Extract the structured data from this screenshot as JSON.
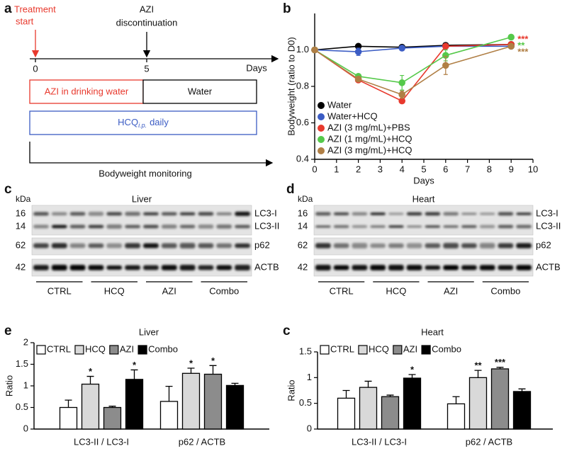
{
  "timeline": {
    "panel": "a",
    "start_label": [
      "Treatment",
      "start"
    ],
    "stop_label": [
      "AZI",
      "discontinuation"
    ],
    "ticks": [
      0,
      5
    ],
    "axis_label": "Days",
    "phase1": "AZI in drinking water",
    "phase2": "Water",
    "hcq": {
      "drug": "HCQ",
      "subscript": "i.p.",
      "suffix": "daily"
    },
    "monitoring": "Bodyweight monitoring"
  },
  "chart_data": [
    {
      "type": "line",
      "panel": "b",
      "x": [
        0,
        2,
        4,
        6,
        9
      ],
      "xlim": [
        0,
        10
      ],
      "xticks": [
        0,
        1,
        2,
        3,
        4,
        5,
        6,
        7,
        8,
        9,
        10
      ],
      "ylim": [
        0.4,
        1.2
      ],
      "yticks": [
        0.4,
        0.6,
        0.8,
        {
          "value": 1,
          "label": "1.0"
        }
      ],
      "xlabel": "Days",
      "ylabel": "Bodyweight (ratio to D0)",
      "legend": "lower left",
      "series": [
        {
          "name": "Water",
          "color": "#000000",
          "values": [
            1,
            1.02,
            1.015,
            1.025,
            1.03
          ],
          "errors": [
            0,
            0.01,
            0.01,
            0.01,
            0.01
          ]
        },
        {
          "name": "Water+HCQ",
          "color": "#3b5cc4",
          "values": [
            1,
            0.99,
            1.01,
            1.02,
            1.02
          ],
          "errors": [
            0,
            0.02,
            0.01,
            0.01,
            0.01
          ]
        },
        {
          "name": "AZI (3 mg/mL)+PBS",
          "color": "#e8392d",
          "values": [
            1,
            0.835,
            0.72,
            1.02,
            1.03
          ],
          "errors": [
            0,
            0.01,
            0.01,
            0.01,
            0.01
          ],
          "label": "***"
        },
        {
          "name": "AZI (1 mg/mL)+HCQ",
          "color": "#55c94a",
          "values": [
            1,
            0.855,
            0.82,
            0.97,
            1.07
          ],
          "errors": [
            0,
            0.01,
            0.04,
            0.03,
            0.01
          ],
          "label": "**"
        },
        {
          "name": "AZI (3 mg/mL)+HCQ",
          "color": "#b07f45",
          "values": [
            1,
            0.84,
            0.755,
            0.915,
            1.02
          ],
          "errors": [
            0,
            0.01,
            0.02,
            0.05,
            0.01
          ],
          "label": "***"
        }
      ]
    },
    {
      "type": "bar",
      "panel": "e",
      "title": "Liver",
      "categories": [
        "LC3-II / LC3-I",
        "p62 / ACTB"
      ],
      "ylabel": "Ratio",
      "ylim": [
        0,
        2
      ],
      "yticks": [
        0,
        0.5,
        1,
        1.5,
        2
      ],
      "legend": "top left",
      "series": [
        {
          "name": "CTRL",
          "color": "#ffffff",
          "values": [
            0.5,
            0.64
          ],
          "errors": [
            0.17,
            0.35
          ]
        },
        {
          "name": "HCQ",
          "color": "#d9d9d9",
          "values": [
            1.04,
            1.29
          ],
          "errors": [
            0.18,
            0.12
          ],
          "stars": [
            "*",
            "*"
          ]
        },
        {
          "name": "AZI",
          "color": "#8c8c8c",
          "values": [
            0.5,
            1.27
          ],
          "errors": [
            0.03,
            0.2
          ],
          "stars": [
            null,
            "*"
          ]
        },
        {
          "name": "Combo",
          "color": "#000000",
          "values": [
            1.15,
            1.01
          ],
          "errors": [
            0.22,
            0.05
          ],
          "stars": [
            "*",
            null
          ]
        }
      ]
    },
    {
      "type": "bar",
      "panel": "c",
      "title": "Heart",
      "categories": [
        "LC3-II / LC3-I",
        "p62 / ACTB"
      ],
      "ylabel": "Ratio",
      "ylim": [
        0,
        1.5
      ],
      "yticks": [
        0,
        0.5,
        1,
        1.5
      ],
      "legend": "top left",
      "series": [
        {
          "name": "CTRL",
          "color": "#ffffff",
          "values": [
            0.6,
            0.49
          ],
          "errors": [
            0.15,
            0.14
          ]
        },
        {
          "name": "HCQ",
          "color": "#d9d9d9",
          "values": [
            0.81,
            1.0
          ],
          "errors": [
            0.12,
            0.14
          ],
          "stars": [
            null,
            "**"
          ]
        },
        {
          "name": "AZI",
          "color": "#8c8c8c",
          "values": [
            0.63,
            1.17
          ],
          "errors": [
            0.03,
            0.03
          ],
          "stars": [
            null,
            "***"
          ]
        },
        {
          "name": "Combo",
          "color": "#000000",
          "values": [
            0.99,
            0.73
          ],
          "errors": [
            0.07,
            0.05
          ],
          "stars": [
            "*",
            null
          ]
        }
      ]
    }
  ],
  "blots": [
    {
      "panel": "c",
      "unit": "kDa",
      "title": "Liver",
      "rows": [
        {
          "markers": [
            16,
            14
          ],
          "labels": [
            "LC3-I",
            "LC3-II"
          ]
        },
        {
          "markers": [
            62
          ],
          "labels": [
            "p62"
          ]
        },
        {
          "markers": [
            42
          ],
          "labels": [
            "ACTB"
          ]
        }
      ],
      "groups": [
        "CTRL",
        "HCQ",
        "AZI",
        "Combo"
      ]
    },
    {
      "panel": "d",
      "unit": "kDa",
      "title": "Heart",
      "rows": [
        {
          "markers": [
            16,
            14
          ],
          "labels": [
            "LC3-I",
            "LC3-II"
          ]
        },
        {
          "markers": [
            62
          ],
          "labels": [
            "p62"
          ]
        },
        {
          "markers": [
            42
          ],
          "labels": [
            "ACTB"
          ]
        }
      ],
      "groups": [
        "CTRL",
        "HCQ",
        "AZI",
        "Combo"
      ]
    }
  ]
}
